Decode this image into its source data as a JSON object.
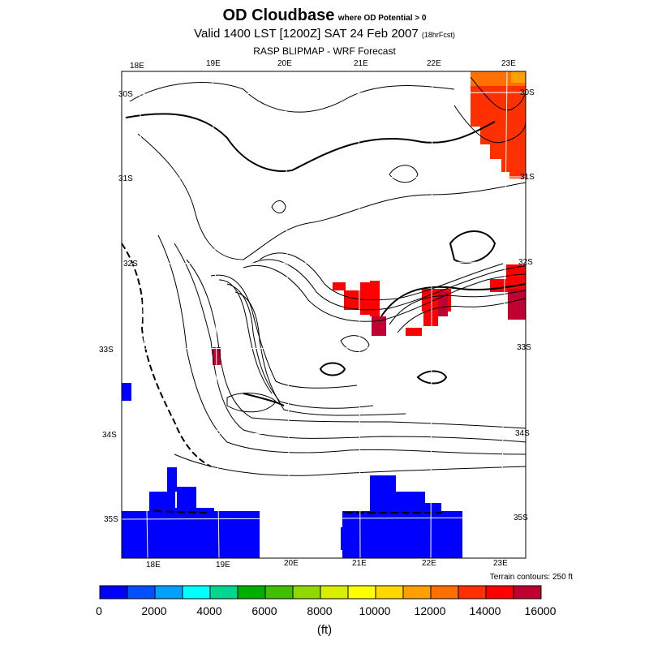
{
  "title": {
    "main": "OD Cloudbase",
    "condition": "where OD Potential > 0",
    "valid": "Valid 1400 LST [1200Z] SAT 24 Feb 2007",
    "forecast_hours": "(18hrFcst)",
    "subtitle": "RASP BLIPMAP - WRF Forecast"
  },
  "map": {
    "top_lon_labels": [
      "18E",
      "19E",
      "20E",
      "21E",
      "22E",
      "23E"
    ],
    "bottom_lon_labels": [
      "18E",
      "19E",
      "20E",
      "21E",
      "22E",
      "23E"
    ],
    "left_lat_labels": [
      "30S",
      "31S",
      "32S",
      "33S",
      "34S",
      "35S"
    ],
    "right_lat_labels": [
      "30S",
      "31S",
      "32S",
      "33S",
      "34S",
      "35S"
    ],
    "terrain_note": "Terrain contours: 250 ft"
  },
  "colorbar": {
    "colors": [
      "#0000ff",
      "#0050ff",
      "#00a0ff",
      "#00ffff",
      "#00d890",
      "#00b000",
      "#40c000",
      "#90d800",
      "#d8f000",
      "#ffff00",
      "#ffd800",
      "#ffa000",
      "#ff7000",
      "#ff3000",
      "#ff0000",
      "#c00030"
    ],
    "labels": [
      "0",
      "2000",
      "4000",
      "6000",
      "8000",
      "10000",
      "12000",
      "14000",
      "16000"
    ],
    "units": "(ft)"
  }
}
